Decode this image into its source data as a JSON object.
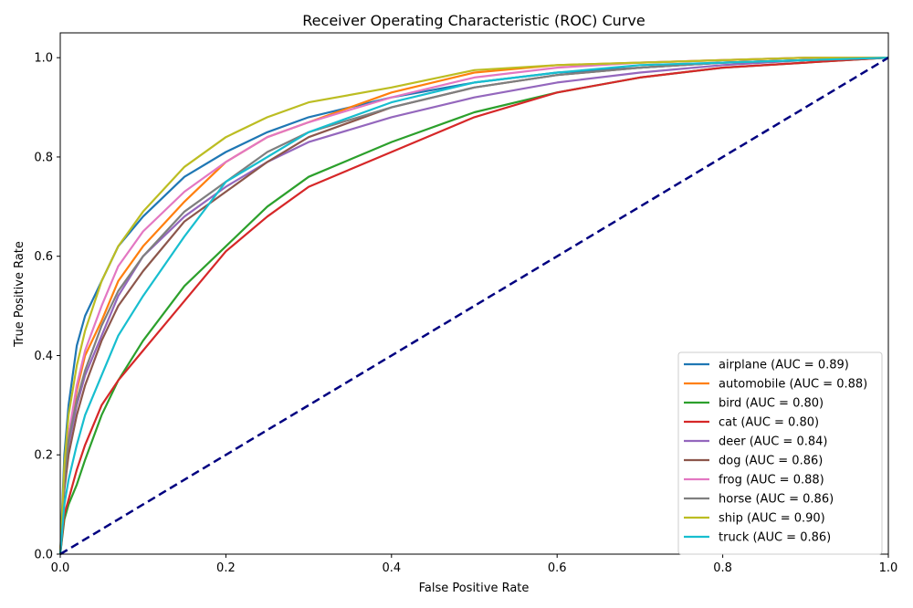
{
  "chart_data": {
    "type": "line",
    "title": "Receiver Operating Characteristic (ROC) Curve",
    "xlabel": "False Positive Rate",
    "ylabel": "True Positive Rate",
    "xlim": [
      0.0,
      1.0
    ],
    "ylim": [
      0.0,
      1.05
    ],
    "xticks": [
      "0.0",
      "0.2",
      "0.4",
      "0.6",
      "0.8",
      "1.0"
    ],
    "yticks": [
      "0.0",
      "0.2",
      "0.4",
      "0.6",
      "0.8",
      "1.0"
    ],
    "grid": false,
    "legend_position": "lower-right",
    "reference_line": {
      "x": [
        0,
        1
      ],
      "y": [
        0,
        1
      ],
      "color": "#000080",
      "style": "dashed"
    },
    "series": [
      {
        "name": "airplane (AUC = 0.89)",
        "color": "#1f77b4",
        "x": [
          0,
          0.005,
          0.01,
          0.02,
          0.03,
          0.05,
          0.07,
          0.1,
          0.15,
          0.2,
          0.25,
          0.3,
          0.4,
          0.5,
          0.6,
          0.7,
          0.8,
          0.9,
          1.0
        ],
        "y": [
          0,
          0.2,
          0.3,
          0.42,
          0.48,
          0.55,
          0.62,
          0.68,
          0.76,
          0.81,
          0.85,
          0.88,
          0.92,
          0.95,
          0.97,
          0.98,
          0.99,
          0.995,
          1.0
        ]
      },
      {
        "name": "automobile (AUC = 0.88)",
        "color": "#ff7f0e",
        "x": [
          0,
          0.005,
          0.01,
          0.02,
          0.03,
          0.05,
          0.07,
          0.1,
          0.15,
          0.2,
          0.25,
          0.3,
          0.4,
          0.5,
          0.6,
          0.7,
          0.8,
          0.9,
          1.0
        ],
        "y": [
          0,
          0.15,
          0.24,
          0.33,
          0.4,
          0.47,
          0.55,
          0.62,
          0.71,
          0.79,
          0.84,
          0.87,
          0.93,
          0.97,
          0.985,
          0.99,
          0.995,
          1.0,
          1.0
        ]
      },
      {
        "name": "bird (AUC = 0.80)",
        "color": "#2ca02c",
        "x": [
          0,
          0.005,
          0.01,
          0.02,
          0.03,
          0.05,
          0.07,
          0.1,
          0.15,
          0.2,
          0.25,
          0.3,
          0.4,
          0.5,
          0.6,
          0.7,
          0.8,
          0.9,
          1.0
        ],
        "y": [
          0,
          0.07,
          0.1,
          0.14,
          0.19,
          0.28,
          0.35,
          0.43,
          0.54,
          0.62,
          0.7,
          0.76,
          0.83,
          0.89,
          0.93,
          0.96,
          0.98,
          0.99,
          1.0
        ]
      },
      {
        "name": "cat (AUC = 0.80)",
        "color": "#d62728",
        "x": [
          0,
          0.005,
          0.01,
          0.02,
          0.03,
          0.05,
          0.07,
          0.1,
          0.15,
          0.2,
          0.25,
          0.3,
          0.4,
          0.5,
          0.6,
          0.7,
          0.8,
          0.9,
          1.0
        ],
        "y": [
          0,
          0.08,
          0.11,
          0.17,
          0.22,
          0.3,
          0.35,
          0.41,
          0.51,
          0.61,
          0.68,
          0.74,
          0.81,
          0.88,
          0.93,
          0.96,
          0.98,
          0.99,
          1.0
        ]
      },
      {
        "name": "deer (AUC = 0.84)",
        "color": "#9467bd",
        "x": [
          0,
          0.005,
          0.01,
          0.02,
          0.03,
          0.05,
          0.07,
          0.1,
          0.15,
          0.2,
          0.25,
          0.3,
          0.4,
          0.5,
          0.6,
          0.7,
          0.8,
          0.9,
          1.0
        ],
        "y": [
          0,
          0.14,
          0.22,
          0.3,
          0.36,
          0.44,
          0.52,
          0.6,
          0.68,
          0.74,
          0.79,
          0.83,
          0.88,
          0.92,
          0.95,
          0.97,
          0.985,
          0.995,
          1.0
        ]
      },
      {
        "name": "dog (AUC = 0.86)",
        "color": "#8c564b",
        "x": [
          0,
          0.005,
          0.01,
          0.02,
          0.03,
          0.05,
          0.07,
          0.1,
          0.15,
          0.2,
          0.25,
          0.3,
          0.4,
          0.5,
          0.6,
          0.7,
          0.8,
          0.9,
          1.0
        ],
        "y": [
          0,
          0.13,
          0.2,
          0.28,
          0.34,
          0.43,
          0.5,
          0.57,
          0.67,
          0.73,
          0.79,
          0.84,
          0.9,
          0.94,
          0.965,
          0.98,
          0.99,
          0.995,
          1.0
        ]
      },
      {
        "name": "frog (AUC = 0.88)",
        "color": "#e377c2",
        "x": [
          0,
          0.005,
          0.01,
          0.02,
          0.03,
          0.05,
          0.07,
          0.1,
          0.15,
          0.2,
          0.25,
          0.3,
          0.4,
          0.5,
          0.6,
          0.7,
          0.8,
          0.9,
          1.0
        ],
        "y": [
          0,
          0.15,
          0.24,
          0.34,
          0.41,
          0.5,
          0.58,
          0.65,
          0.73,
          0.79,
          0.84,
          0.87,
          0.92,
          0.96,
          0.98,
          0.99,
          0.995,
          1.0,
          1.0
        ]
      },
      {
        "name": "horse (AUC = 0.86)",
        "color": "#7f7f7f",
        "x": [
          0,
          0.005,
          0.01,
          0.02,
          0.03,
          0.05,
          0.07,
          0.1,
          0.15,
          0.2,
          0.25,
          0.3,
          0.4,
          0.5,
          0.6,
          0.7,
          0.8,
          0.9,
          1.0
        ],
        "y": [
          0,
          0.15,
          0.23,
          0.31,
          0.37,
          0.46,
          0.53,
          0.6,
          0.69,
          0.75,
          0.81,
          0.85,
          0.9,
          0.94,
          0.965,
          0.98,
          0.99,
          0.995,
          1.0
        ]
      },
      {
        "name": "ship (AUC = 0.90)",
        "color": "#bcbd22",
        "x": [
          0,
          0.005,
          0.01,
          0.02,
          0.03,
          0.05,
          0.07,
          0.1,
          0.15,
          0.2,
          0.25,
          0.3,
          0.4,
          0.5,
          0.6,
          0.7,
          0.8,
          0.9,
          1.0
        ],
        "y": [
          0,
          0.18,
          0.28,
          0.38,
          0.45,
          0.55,
          0.62,
          0.69,
          0.78,
          0.84,
          0.88,
          0.91,
          0.94,
          0.975,
          0.985,
          0.99,
          0.995,
          1.0,
          1.0
        ]
      },
      {
        "name": "truck (AUC = 0.86)",
        "color": "#17becf",
        "x": [
          0,
          0.005,
          0.01,
          0.02,
          0.03,
          0.05,
          0.07,
          0.1,
          0.15,
          0.2,
          0.25,
          0.3,
          0.4,
          0.5,
          0.6,
          0.7,
          0.8,
          0.9,
          1.0
        ],
        "y": [
          0,
          0.1,
          0.15,
          0.22,
          0.28,
          0.36,
          0.44,
          0.52,
          0.64,
          0.75,
          0.8,
          0.85,
          0.91,
          0.95,
          0.97,
          0.985,
          0.99,
          0.995,
          1.0
        ]
      }
    ]
  }
}
